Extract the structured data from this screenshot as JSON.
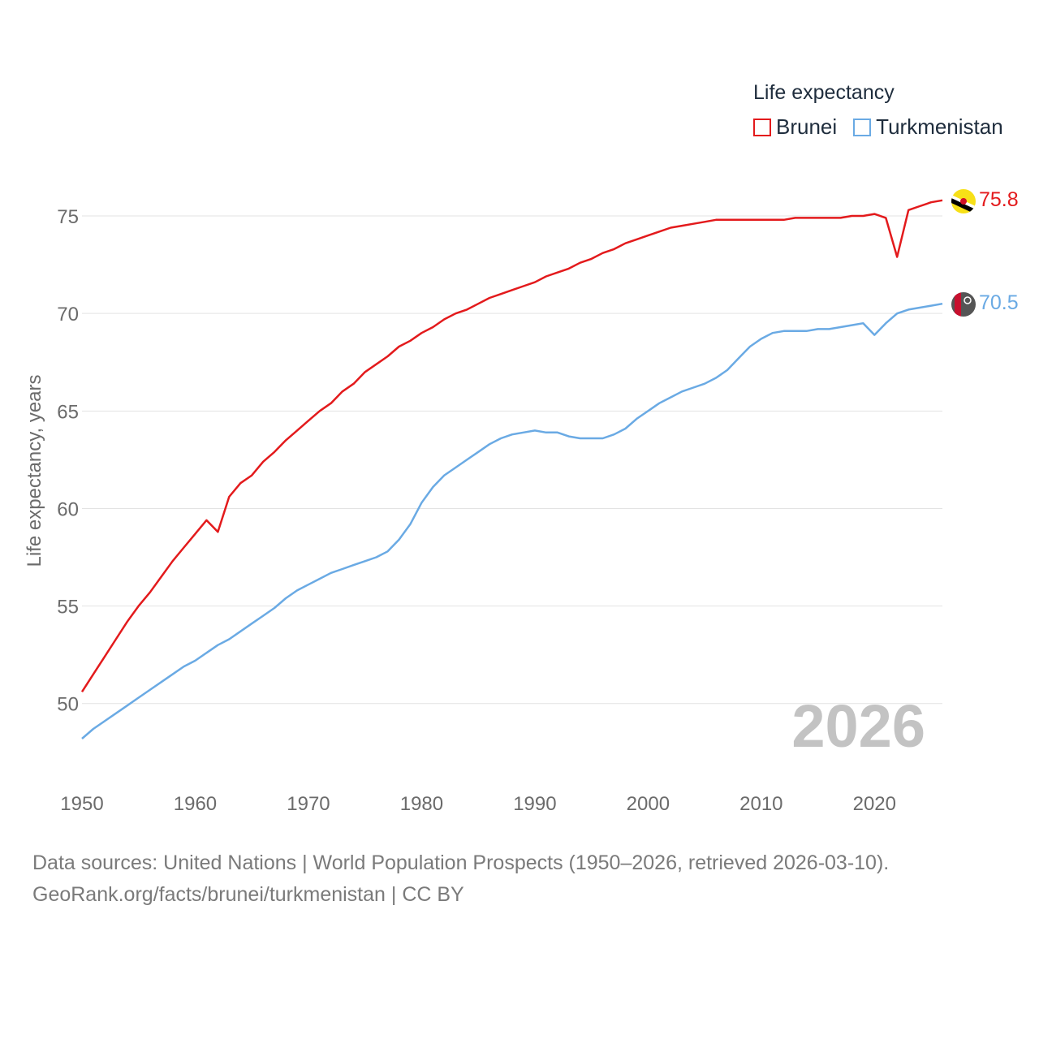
{
  "legend": {
    "title": "Life expectancy",
    "items": [
      {
        "label": "Brunei",
        "color": "#e31a1c"
      },
      {
        "label": "Turkmenistan",
        "color": "#6aaae4"
      }
    ]
  },
  "big_year": "2026",
  "source": {
    "line1": "Data sources: United Nations | World Population Prospects (1950–2026, retrieved 2026-03-10).",
    "line2": "GeoRank.org/facts/brunei/turkmenistan | CC BY"
  },
  "chart_data": {
    "type": "line",
    "title": "Life expectancy",
    "xlabel": "",
    "ylabel": "Life expectancy, years",
    "xlim": [
      1950,
      2026
    ],
    "ylim": [
      48.2,
      76.5
    ],
    "grid": true,
    "legend_position": "top-right",
    "x_ticks": [
      1950,
      1960,
      1970,
      1980,
      1990,
      2000,
      2010,
      2020
    ],
    "y_ticks": [
      50,
      55,
      60,
      65,
      70,
      75
    ],
    "x": [
      1950,
      1951,
      1952,
      1953,
      1954,
      1955,
      1956,
      1957,
      1958,
      1959,
      1960,
      1961,
      1962,
      1963,
      1964,
      1965,
      1966,
      1967,
      1968,
      1969,
      1970,
      1971,
      1972,
      1973,
      1974,
      1975,
      1976,
      1977,
      1978,
      1979,
      1980,
      1981,
      1982,
      1983,
      1984,
      1985,
      1986,
      1987,
      1988,
      1989,
      1990,
      1991,
      1992,
      1993,
      1994,
      1995,
      1996,
      1997,
      1998,
      1999,
      2000,
      2001,
      2002,
      2003,
      2004,
      2005,
      2006,
      2007,
      2008,
      2009,
      2010,
      2011,
      2012,
      2013,
      2014,
      2015,
      2016,
      2017,
      2018,
      2019,
      2020,
      2021,
      2022,
      2023,
      2024,
      2025,
      2026
    ],
    "series": [
      {
        "name": "Brunei",
        "color": "#e31a1c",
        "end_label": "75.8",
        "values": [
          50.6,
          51.5,
          52.4,
          53.3,
          54.2,
          55.0,
          55.7,
          56.5,
          57.3,
          58.0,
          58.7,
          59.4,
          58.8,
          60.6,
          61.3,
          61.7,
          62.4,
          62.9,
          63.5,
          64.0,
          64.5,
          65.0,
          65.4,
          66.0,
          66.4,
          67.0,
          67.4,
          67.8,
          68.3,
          68.6,
          69.0,
          69.3,
          69.7,
          70.0,
          70.2,
          70.5,
          70.8,
          71.0,
          71.2,
          71.4,
          71.6,
          71.9,
          72.1,
          72.3,
          72.6,
          72.8,
          73.1,
          73.3,
          73.6,
          73.8,
          74.0,
          74.2,
          74.4,
          74.5,
          74.6,
          74.7,
          74.8,
          74.8,
          74.8,
          74.8,
          74.8,
          74.8,
          74.8,
          74.9,
          74.9,
          74.9,
          74.9,
          74.9,
          75.0,
          75.0,
          75.1,
          74.9,
          72.9,
          75.3,
          75.5,
          75.7,
          75.8
        ]
      },
      {
        "name": "Turkmenistan",
        "color": "#6aaae4",
        "end_label": "70.5",
        "values": [
          48.2,
          48.7,
          49.1,
          49.5,
          49.9,
          50.3,
          50.7,
          51.1,
          51.5,
          51.9,
          52.2,
          52.6,
          53.0,
          53.3,
          53.7,
          54.1,
          54.5,
          54.9,
          55.4,
          55.8,
          56.1,
          56.4,
          56.7,
          56.9,
          57.1,
          57.3,
          57.5,
          57.8,
          58.4,
          59.2,
          60.3,
          61.1,
          61.7,
          62.1,
          62.5,
          62.9,
          63.3,
          63.6,
          63.8,
          63.9,
          64.0,
          63.9,
          63.9,
          63.7,
          63.6,
          63.6,
          63.6,
          63.8,
          64.1,
          64.6,
          65.0,
          65.4,
          65.7,
          66.0,
          66.2,
          66.4,
          66.7,
          67.1,
          67.7,
          68.3,
          68.7,
          69.0,
          69.1,
          69.1,
          69.1,
          69.2,
          69.2,
          69.3,
          69.4,
          69.5,
          68.9,
          69.5,
          70.0,
          70.2,
          70.3,
          70.4,
          70.5
        ]
      }
    ]
  }
}
